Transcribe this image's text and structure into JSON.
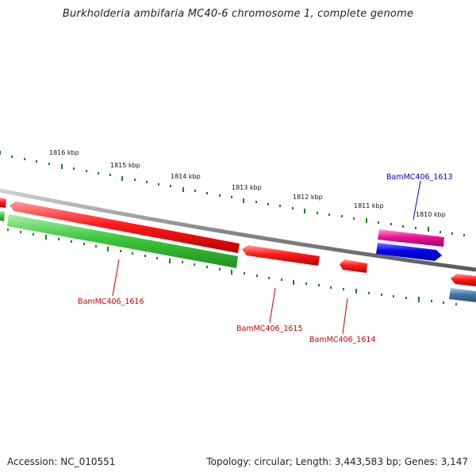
{
  "title": "Burkholderia ambifaria MC40-6 chromosome 1, complete genome",
  "ruler": {
    "labels": [
      "1816 kbp",
      "1815 kbp",
      "1814 kbp",
      "1813 kbp",
      "1812 kbp",
      "1811 kbp",
      "1810 kbp"
    ]
  },
  "genes": [
    {
      "name": "BamMC406_1616",
      "strand": "reverse",
      "color": "#ff0000",
      "label_color": "#cc0000"
    },
    {
      "name": "BamMC406_1615",
      "strand": "reverse",
      "color": "#ff0000",
      "label_color": "#cc0000"
    },
    {
      "name": "BamMC406_1614",
      "strand": "reverse",
      "color": "#ff0000",
      "label_color": "#cc0000"
    },
    {
      "name": "BamMC406_1613",
      "strand": "forward",
      "color": "#0000ee",
      "label_color": "#0000cc"
    }
  ],
  "colors": {
    "backbone": "#8a8a8a",
    "ticks": "#1a7f1a",
    "cds_red": "#ff0000",
    "cds_green": "#33cc33",
    "cds_blue": "#0000ee",
    "cds_magenta": "#ee1199",
    "cds_steelblue": "#4477aa"
  },
  "footer": {
    "accession": "Accession: NC_010551",
    "summary": "Topology: circular; Length: 3,443,583 bp; Genes: 3,147"
  }
}
